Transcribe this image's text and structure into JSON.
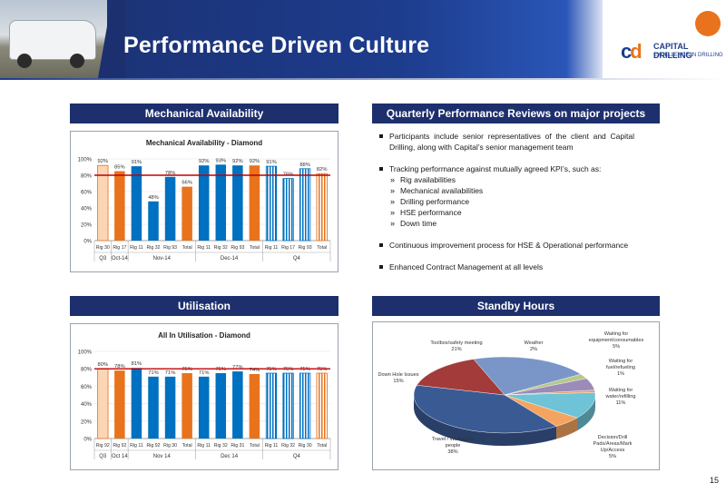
{
  "header": {
    "title": "Performance Driven Culture"
  },
  "logo": {
    "name": "CAPITAL DRILLING",
    "tagline": "EXCELLENCE IN DRILLING",
    "mark": "cd"
  },
  "sections": {
    "mechanical": "Mechanical Availability",
    "quarterly": "Quarterly Performance Reviews on major projects",
    "utilisation": "Utilisation",
    "standby": "Standby Hours"
  },
  "bullets": {
    "b1": "Participants include senior representatives of the client and Capital Drilling, along with Capital’s senior management team",
    "b2": "Tracking performance against mutually agreed KPI’s, such as:",
    "subs": [
      "Rig availabilities",
      "Mechanical availabilities",
      "Drilling performance",
      "HSE performance",
      "Down time"
    ],
    "b3": "Continuous improvement process for HSE & Operational performance",
    "b4": "Enhanced Contract Management at all levels"
  },
  "page_number": "15",
  "colors": {
    "navy": "#1d2f6d",
    "orange": "#e8731c",
    "blue": "#0070c0",
    "peach": "#fcd5b4",
    "target": "#c00000"
  },
  "chart_data": [
    {
      "type": "bar",
      "title": "Mechanical Availability - Diamond",
      "categories": [
        "Rig 30",
        "Rig 17",
        "Rig 11",
        "Rig 32",
        "Rig 93",
        "Total",
        "Rig 11",
        "Rig 32",
        "Rig 93",
        "Total",
        "Rig 11",
        "Rig 17",
        "Rig 93",
        "Total"
      ],
      "groups": [
        {
          "label": "Q3",
          "span": 1
        },
        {
          "label": "Oct-14",
          "span": 1
        },
        {
          "label": "Nov-14",
          "span": 4
        },
        {
          "label": "Dec-14",
          "span": 4
        },
        {
          "label": "Q4",
          "span": 4
        }
      ],
      "values": [
        92,
        85,
        91,
        48,
        78,
        66,
        92,
        93,
        92,
        92,
        91,
        76,
        88,
        82
      ],
      "labels": [
        "92%",
        "85%",
        "91%",
        "48%",
        "78%",
        "66%",
        "92%",
        "93%",
        "92%",
        "92%",
        "91%",
        "76%",
        "88%",
        "82%"
      ],
      "bar_styles": [
        "peach",
        "orange",
        "blue",
        "blue",
        "blue",
        "orange",
        "blue",
        "blue",
        "blue",
        "orange",
        "hatch",
        "hatch",
        "hatch",
        "hatch-orange"
      ],
      "target": 80,
      "ylim": [
        0,
        100
      ],
      "yticks": [
        "0%",
        "20%",
        "40%",
        "60%",
        "80%",
        "100%"
      ]
    },
    {
      "type": "bar",
      "title": "All In Utilisation - Diamond",
      "categories": [
        "Rig 92",
        "Rig 92",
        "Rig 11",
        "Rig 92",
        "Rig 30",
        "Total",
        "Rig 11",
        "Rig 32",
        "Rig 31",
        "Total",
        "Rig 11",
        "Rig 32",
        "Rig 30",
        "Total"
      ],
      "groups": [
        {
          "label": "Q3",
          "span": 1
        },
        {
          "label": "Oct 14",
          "span": 1
        },
        {
          "label": "Nov 14",
          "span": 4
        },
        {
          "label": "Dec 14",
          "span": 4
        },
        {
          "label": "Q4",
          "span": 4
        }
      ],
      "values": [
        80,
        78,
        81,
        71,
        71,
        75,
        71,
        75,
        77,
        74,
        75,
        75,
        75,
        75
      ],
      "labels": [
        "80%",
        "78%",
        "81%",
        "71%",
        "71%",
        "75%",
        "71%",
        "75%",
        "77%",
        "74%",
        "75%",
        "75%",
        "75%",
        "75%"
      ],
      "bar_styles": [
        "peach",
        "orange",
        "blue",
        "blue",
        "blue",
        "orange",
        "blue",
        "blue",
        "blue",
        "orange",
        "hatch",
        "hatch",
        "hatch",
        "hatch-orange"
      ],
      "target": 80,
      "ylim": [
        0,
        100
      ],
      "yticks": [
        "0%",
        "20%",
        "40%",
        "60%",
        "80%",
        "100%"
      ]
    },
    {
      "type": "pie",
      "slices": [
        {
          "label": "Toolbox/safety meeting",
          "pct": "21%",
          "value": 21,
          "color": "#7a96c8"
        },
        {
          "label": "Weather",
          "pct": "2%",
          "value": 2,
          "color": "#b7c88a"
        },
        {
          "label": "Waiting for equipment/consumables",
          "pct": "5%",
          "value": 5,
          "color": "#9b8bb8"
        },
        {
          "label": "Waiting for fuel/refueling",
          "pct": "1%",
          "value": 1,
          "color": "#e0a06a"
        },
        {
          "label": "Waiting for water/refilling",
          "pct": "11%",
          "value": 11,
          "color": "#6fc3d6"
        },
        {
          "label": "Decision/Drill Pads/Areas/Mark Up/Access",
          "pct": "5%",
          "value": 5,
          "color": "#f4a460"
        },
        {
          "label": "Travel / Waiting for people",
          "pct": "38%",
          "value": 38,
          "color": "#3a5a94"
        },
        {
          "label": "Down Hole Issues",
          "pct": "15%",
          "value": 15,
          "color": "#a33b3b"
        }
      ]
    }
  ]
}
